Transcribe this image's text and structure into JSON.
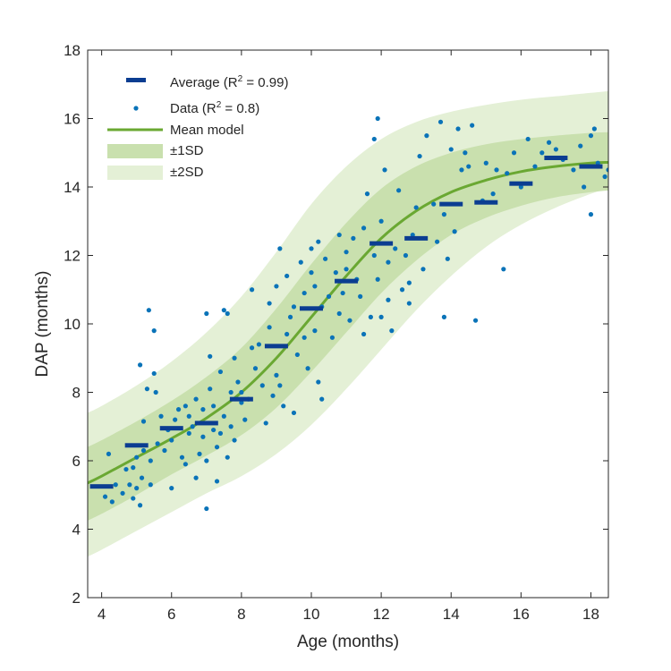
{
  "chart_data": {
    "type": "scatter",
    "title": "",
    "xlabel": "Age (months)",
    "ylabel": "DAP (months)",
    "xlim": [
      3.6,
      18.5
    ],
    "ylim": [
      2,
      18
    ],
    "xticks": [
      4,
      6,
      8,
      10,
      12,
      14,
      16,
      18
    ],
    "yticks": [
      2,
      4,
      6,
      8,
      10,
      12,
      14,
      16,
      18
    ],
    "grid": false,
    "legend_position": "top-left",
    "legend": [
      {
        "key": "average",
        "label": "Average (R",
        "sup": "2",
        "tail": " = 0.99)"
      },
      {
        "key": "data",
        "label": "Data (R",
        "sup": "2",
        "tail": " = 0.8)"
      },
      {
        "key": "mean",
        "label": "Mean model",
        "sup": "",
        "tail": ""
      },
      {
        "key": "sd1",
        "label": "±1SD",
        "sup": "",
        "tail": ""
      },
      {
        "key": "sd2",
        "label": "±2SD",
        "sup": "",
        "tail": ""
      }
    ],
    "colors": {
      "average": "#0b3d91",
      "data": "#0a73b8",
      "mean": "#6aa832",
      "sd1": "#c9e0ae",
      "sd2": "#e4f0d6"
    },
    "mean_model": {
      "x": [
        3.6,
        4,
        5,
        6,
        7,
        8,
        9,
        10,
        11,
        12,
        13,
        14,
        15,
        16,
        17,
        18,
        18.5
      ],
      "y": [
        5.35,
        5.55,
        6.1,
        6.65,
        7.25,
        8.0,
        9.0,
        10.2,
        11.4,
        12.5,
        13.3,
        13.85,
        14.2,
        14.45,
        14.6,
        14.7,
        14.72
      ]
    },
    "sd1_band": {
      "x": [
        3.6,
        4,
        5,
        6,
        7,
        8,
        9,
        10,
        11,
        12,
        13,
        14,
        15,
        16,
        17,
        18,
        18.5
      ],
      "upper": [
        6.4,
        6.6,
        7.15,
        7.75,
        8.45,
        9.3,
        10.45,
        11.75,
        12.95,
        13.95,
        14.6,
        15.0,
        15.25,
        15.4,
        15.5,
        15.58,
        15.6
      ],
      "lower": [
        4.25,
        4.45,
        5.0,
        5.6,
        6.15,
        6.75,
        7.55,
        8.6,
        9.75,
        10.9,
        11.85,
        12.6,
        13.1,
        13.45,
        13.7,
        13.85,
        13.9
      ]
    },
    "sd2_band": {
      "x": [
        3.6,
        4,
        5,
        6,
        7,
        8,
        9,
        10,
        11,
        12,
        13,
        14,
        15,
        16,
        17,
        18,
        18.5
      ],
      "upper": [
        7.4,
        7.6,
        8.2,
        8.9,
        9.75,
        10.8,
        12.1,
        13.5,
        14.6,
        15.4,
        15.9,
        16.2,
        16.4,
        16.55,
        16.65,
        16.75,
        16.8
      ],
      "lower": [
        3.2,
        3.4,
        3.95,
        4.5,
        5.05,
        5.55,
        6.2,
        7.05,
        8.1,
        9.25,
        10.4,
        11.4,
        12.25,
        12.9,
        13.4,
        13.8,
        13.95
      ]
    },
    "averages": {
      "x": [
        4,
        5,
        6,
        7,
        8,
        9,
        10,
        11,
        12,
        13,
        14,
        15,
        16,
        17,
        18
      ],
      "y": [
        5.25,
        6.45,
        6.95,
        7.1,
        7.8,
        9.35,
        10.45,
        11.25,
        12.35,
        12.5,
        13.5,
        13.55,
        14.1,
        14.85,
        14.6
      ]
    },
    "data_points": [
      [
        4.1,
        4.95
      ],
      [
        4.2,
        6.2
      ],
      [
        4.3,
        4.8
      ],
      [
        4.4,
        5.3
      ],
      [
        4.6,
        5.05
      ],
      [
        4.7,
        5.75
      ],
      [
        4.8,
        5.3
      ],
      [
        4.9,
        5.8
      ],
      [
        4.9,
        4.9
      ],
      [
        5.0,
        5.2
      ],
      [
        5.0,
        6.1
      ],
      [
        5.1,
        4.7
      ],
      [
        5.1,
        8.8
      ],
      [
        5.15,
        5.5
      ],
      [
        5.2,
        7.15
      ],
      [
        5.2,
        6.3
      ],
      [
        5.3,
        8.1
      ],
      [
        5.35,
        10.4
      ],
      [
        5.4,
        6.0
      ],
      [
        5.4,
        5.3
      ],
      [
        5.5,
        9.8
      ],
      [
        5.5,
        8.55
      ],
      [
        5.55,
        8.0
      ],
      [
        5.6,
        6.5
      ],
      [
        5.7,
        7.3
      ],
      [
        5.8,
        6.3
      ],
      [
        5.9,
        6.9
      ],
      [
        6.0,
        5.2
      ],
      [
        6.0,
        6.6
      ],
      [
        6.1,
        7.2
      ],
      [
        6.2,
        7.5
      ],
      [
        6.3,
        6.1
      ],
      [
        6.4,
        7.6
      ],
      [
        6.4,
        5.9
      ],
      [
        6.5,
        6.8
      ],
      [
        6.5,
        7.3
      ],
      [
        6.6,
        7.0
      ],
      [
        6.7,
        7.8
      ],
      [
        6.7,
        5.5
      ],
      [
        6.8,
        6.2
      ],
      [
        6.9,
        6.7
      ],
      [
        6.9,
        7.5
      ],
      [
        7.0,
        10.3
      ],
      [
        7.0,
        6.0
      ],
      [
        7.0,
        4.6
      ],
      [
        7.1,
        9.05
      ],
      [
        7.1,
        8.1
      ],
      [
        7.2,
        6.9
      ],
      [
        7.2,
        7.6
      ],
      [
        7.3,
        5.4
      ],
      [
        7.3,
        6.4
      ],
      [
        7.4,
        8.6
      ],
      [
        7.4,
        6.8
      ],
      [
        7.5,
        10.4
      ],
      [
        7.5,
        7.3
      ],
      [
        7.6,
        6.1
      ],
      [
        7.6,
        10.3
      ],
      [
        7.7,
        8.0
      ],
      [
        7.7,
        7.0
      ],
      [
        7.8,
        9.0
      ],
      [
        7.8,
        6.6
      ],
      [
        7.9,
        8.3
      ],
      [
        8.0,
        8.0
      ],
      [
        8.0,
        7.7
      ],
      [
        8.1,
        7.2
      ],
      [
        8.2,
        7.8
      ],
      [
        8.3,
        11.0
      ],
      [
        8.3,
        9.3
      ],
      [
        8.4,
        8.7
      ],
      [
        8.5,
        9.4
      ],
      [
        8.6,
        8.2
      ],
      [
        8.7,
        7.1
      ],
      [
        8.8,
        9.9
      ],
      [
        8.8,
        10.6
      ],
      [
        8.9,
        7.9
      ],
      [
        9.0,
        11.1
      ],
      [
        9.0,
        8.5
      ],
      [
        9.1,
        12.2
      ],
      [
        9.1,
        8.2
      ],
      [
        9.2,
        7.6
      ],
      [
        9.3,
        9.7
      ],
      [
        9.3,
        11.4
      ],
      [
        9.4,
        10.2
      ],
      [
        9.5,
        7.4
      ],
      [
        9.5,
        10.5
      ],
      [
        9.6,
        9.1
      ],
      [
        9.7,
        11.8
      ],
      [
        9.8,
        10.9
      ],
      [
        9.8,
        9.6
      ],
      [
        9.9,
        8.7
      ],
      [
        10.0,
        11.5
      ],
      [
        10.0,
        12.2
      ],
      [
        10.1,
        9.8
      ],
      [
        10.1,
        11.1
      ],
      [
        10.2,
        8.3
      ],
      [
        10.2,
        12.4
      ],
      [
        10.3,
        10.5
      ],
      [
        10.3,
        7.8
      ],
      [
        10.4,
        11.9
      ],
      [
        10.5,
        10.8
      ],
      [
        10.6,
        9.6
      ],
      [
        10.7,
        11.5
      ],
      [
        10.8,
        12.6
      ],
      [
        10.8,
        10.3
      ],
      [
        10.9,
        10.9
      ],
      [
        11.0,
        12.1
      ],
      [
        11.0,
        11.6
      ],
      [
        11.1,
        10.1
      ],
      [
        11.2,
        12.5
      ],
      [
        11.3,
        11.3
      ],
      [
        11.4,
        10.8
      ],
      [
        11.5,
        9.7
      ],
      [
        11.5,
        12.8
      ],
      [
        11.6,
        13.8
      ],
      [
        11.7,
        10.2
      ],
      [
        11.8,
        12.0
      ],
      [
        11.8,
        15.4
      ],
      [
        11.9,
        16.0
      ],
      [
        11.9,
        11.3
      ],
      [
        12.0,
        10.2
      ],
      [
        12.0,
        13.0
      ],
      [
        12.1,
        14.5
      ],
      [
        12.2,
        11.8
      ],
      [
        12.2,
        10.7
      ],
      [
        12.3,
        9.8
      ],
      [
        12.4,
        12.2
      ],
      [
        12.5,
        13.9
      ],
      [
        12.6,
        11.0
      ],
      [
        12.7,
        12.0
      ],
      [
        12.8,
        11.2
      ],
      [
        12.8,
        10.6
      ],
      [
        12.9,
        12.6
      ],
      [
        13.0,
        13.4
      ],
      [
        13.1,
        14.9
      ],
      [
        13.2,
        11.6
      ],
      [
        13.3,
        15.5
      ],
      [
        13.5,
        13.5
      ],
      [
        13.6,
        12.4
      ],
      [
        13.7,
        15.9
      ],
      [
        13.8,
        10.2
      ],
      [
        13.8,
        13.2
      ],
      [
        13.9,
        11.9
      ],
      [
        14.0,
        15.1
      ],
      [
        14.1,
        12.7
      ],
      [
        14.2,
        15.7
      ],
      [
        14.3,
        14.5
      ],
      [
        14.4,
        15.0
      ],
      [
        14.5,
        14.6
      ],
      [
        14.6,
        15.8
      ],
      [
        14.7,
        10.1
      ],
      [
        14.9,
        13.6
      ],
      [
        15.0,
        14.7
      ],
      [
        15.2,
        13.8
      ],
      [
        15.3,
        14.5
      ],
      [
        15.5,
        11.6
      ],
      [
        15.6,
        14.4
      ],
      [
        15.8,
        15.0
      ],
      [
        16.0,
        14.0
      ],
      [
        16.2,
        15.4
      ],
      [
        16.4,
        14.6
      ],
      [
        16.6,
        15.0
      ],
      [
        16.8,
        15.3
      ],
      [
        17.0,
        15.1
      ],
      [
        17.2,
        14.8
      ],
      [
        17.5,
        14.5
      ],
      [
        17.7,
        15.2
      ],
      [
        17.8,
        14.0
      ],
      [
        18.0,
        13.2
      ],
      [
        18.0,
        15.5
      ],
      [
        18.1,
        15.7
      ],
      [
        18.2,
        14.7
      ],
      [
        18.4,
        14.3
      ],
      [
        18.5,
        14.5
      ]
    ]
  }
}
